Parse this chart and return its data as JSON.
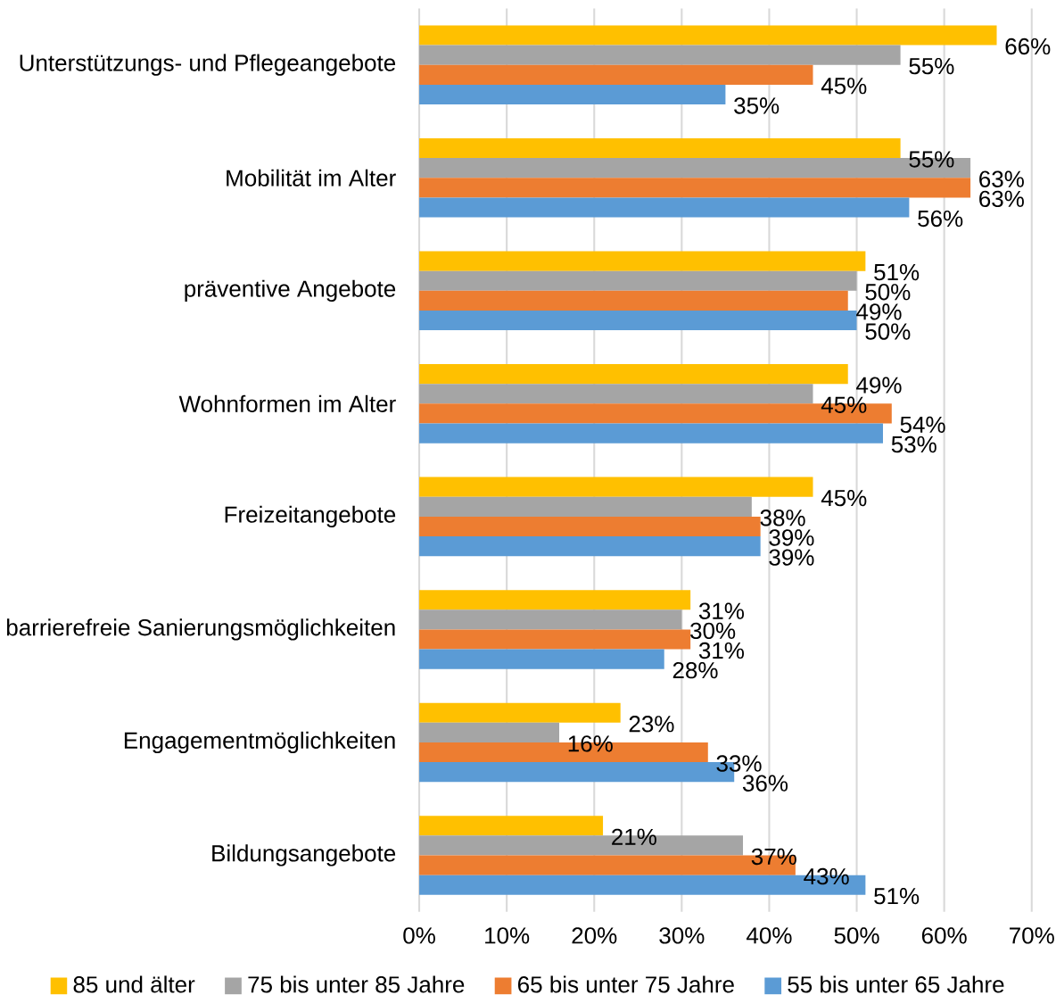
{
  "chart_data": {
    "type": "bar",
    "orientation": "horizontal",
    "categories": [
      "Unterstützungs- und Pflegeangebote",
      "Mobilität im Alter",
      "präventive Angebote",
      "Wohnformen im Alter",
      "Freizeitangebote",
      "barrierefreie Sanierungsmöglichkeiten",
      "Engagementmöglichkeiten",
      "Bildungsangebote"
    ],
    "series": [
      {
        "name": "85 und älter",
        "color": "#ffc000",
        "values": [
          66,
          55,
          51,
          49,
          45,
          31,
          23,
          21
        ],
        "value_labels": [
          "66%",
          "55%",
          "51%",
          "49%",
          "45%",
          "31%",
          "23%",
          "21%"
        ]
      },
      {
        "name": "75 bis unter 85 Jahre",
        "color": "#a5a5a5",
        "values": [
          55,
          63,
          50,
          45,
          38,
          30,
          16,
          37
        ],
        "value_labels": [
          "55%",
          "63%",
          "50%",
          "45%",
          "38%",
          "30%",
          "16%",
          "37%"
        ]
      },
      {
        "name": "65 bis unter 75 Jahre",
        "color": "#ed7d31",
        "values": [
          45,
          63,
          49,
          54,
          39,
          31,
          33,
          43
        ],
        "value_labels": [
          "45%",
          "63%",
          "49%",
          "54%",
          "39%",
          "31%",
          "33%",
          "43%"
        ]
      },
      {
        "name": "55 bis unter 65 Jahre",
        "color": "#5b9bd5",
        "values": [
          35,
          56,
          50,
          53,
          39,
          28,
          36,
          51
        ],
        "value_labels": [
          "35%",
          "56%",
          "50%",
          "53%",
          "39%",
          "28%",
          "36%",
          "51%"
        ]
      }
    ],
    "xlim": [
      0,
      70
    ],
    "xticks": [
      {
        "value": 0,
        "label": "0%"
      },
      {
        "value": 10,
        "label": "10%"
      },
      {
        "value": 20,
        "label": "20%"
      },
      {
        "value": 30,
        "label": "30%"
      },
      {
        "value": 40,
        "label": "40%"
      },
      {
        "value": 50,
        "label": "50%"
      },
      {
        "value": 60,
        "label": "60%"
      },
      {
        "value": 70,
        "label": "70%"
      }
    ],
    "grid": "x",
    "legend": "bottom"
  }
}
